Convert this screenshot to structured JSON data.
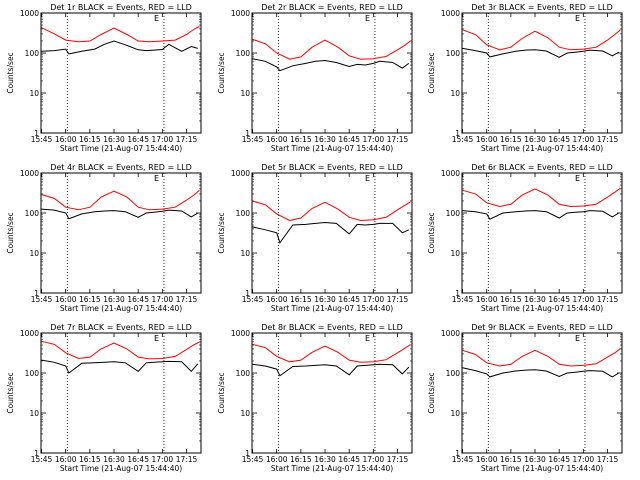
{
  "figure": {
    "ylabel": "Counts/sec",
    "xlabel": "Start Time (21-Aug-07 15:44:40)",
    "x_ticks": [
      "15:45",
      "16:00",
      "16:15",
      "16:30",
      "16:45",
      "17:00",
      "17:15"
    ],
    "y_ticks": [
      "1",
      "10",
      "100",
      "1000"
    ],
    "e_marker": "E",
    "colors": {
      "events": "#000000",
      "lld": "#ff0000",
      "axes": "#000000"
    }
  },
  "chart_data": [
    {
      "type": "line",
      "title": "Det 1r BLACK = Events, RED = LLD",
      "xlabel": "Start Time (21-Aug-07 15:44:40)",
      "ylabel": "Counts/sec",
      "xlim": [
        "15:44:40",
        "17:24"
      ],
      "ylim": [
        1,
        1000
      ],
      "yscale": "log",
      "vlines": [
        "16:01",
        "17:01"
      ],
      "e_marker_at": "17:01",
      "series": [
        {
          "name": "BLACK = Events",
          "color": "#000000",
          "x": [
            "15:45",
            "15:53",
            "16:00",
            "16:02",
            "16:10",
            "16:18",
            "16:24",
            "16:30",
            "16:37",
            "16:45",
            "16:50",
            "16:55",
            "17:00",
            "17:04",
            "17:12",
            "17:18",
            "17:22"
          ],
          "values": [
            110,
            115,
            125,
            95,
            110,
            125,
            165,
            200,
            160,
            120,
            115,
            118,
            122,
            165,
            110,
            145,
            130
          ]
        },
        {
          "name": "RED = LLD",
          "color": "#ff0000",
          "x": [
            "15:45",
            "15:53",
            "16:00",
            "16:08",
            "16:15",
            "16:22",
            "16:30",
            "16:38",
            "16:45",
            "16:52",
            "17:00",
            "17:08",
            "17:15",
            "17:20",
            "17:23"
          ],
          "values": [
            430,
            300,
            210,
            190,
            200,
            290,
            420,
            290,
            200,
            190,
            200,
            210,
            290,
            400,
            460
          ]
        }
      ]
    },
    {
      "type": "line",
      "title": "Det 2r BLACK = Events, RED = LLD",
      "xlabel": "Start Time (21-Aug-07 15:44:40)",
      "ylabel": "Counts/sec",
      "xlim": [
        "15:44:40",
        "17:24"
      ],
      "ylim": [
        1,
        1000
      ],
      "yscale": "log",
      "vlines": [
        "16:01",
        "17:01"
      ],
      "e_marker_at": "17:01",
      "series": [
        {
          "name": "BLACK = Events",
          "color": "#000000",
          "x": [
            "15:45",
            "15:53",
            "16:00",
            "16:02",
            "16:10",
            "16:18",
            "16:24",
            "16:30",
            "16:37",
            "16:45",
            "16:50",
            "16:55",
            "17:00",
            "17:04",
            "17:12",
            "17:18",
            "17:22"
          ],
          "values": [
            72,
            62,
            45,
            36,
            48,
            55,
            62,
            65,
            58,
            46,
            52,
            50,
            55,
            62,
            58,
            42,
            55
          ]
        },
        {
          "name": "RED = LLD",
          "color": "#ff0000",
          "x": [
            "15:45",
            "15:53",
            "16:00",
            "16:08",
            "16:15",
            "16:22",
            "16:30",
            "16:38",
            "16:45",
            "16:52",
            "17:00",
            "17:08",
            "17:15",
            "17:20",
            "17:23"
          ],
          "values": [
            220,
            170,
            100,
            70,
            80,
            140,
            210,
            140,
            85,
            70,
            72,
            82,
            120,
            160,
            200
          ]
        }
      ]
    },
    {
      "type": "line",
      "title": "Det 3r BLACK = Events, RED = LLD",
      "xlabel": "Start Time (21-Aug-07 15:44:40)",
      "ylabel": "Counts/sec",
      "xlim": [
        "15:44:40",
        "17:24"
      ],
      "ylim": [
        1,
        1000
      ],
      "yscale": "log",
      "vlines": [
        "16:01",
        "17:01"
      ],
      "e_marker_at": "17:01",
      "series": [
        {
          "name": "BLACK = Events",
          "color": "#000000",
          "x": [
            "15:45",
            "15:53",
            "16:00",
            "16:02",
            "16:10",
            "16:18",
            "16:24",
            "16:30",
            "16:37",
            "16:45",
            "16:50",
            "16:55",
            "17:00",
            "17:04",
            "17:12",
            "17:18",
            "17:22"
          ],
          "values": [
            130,
            115,
            100,
            80,
            95,
            110,
            118,
            120,
            112,
            78,
            100,
            105,
            110,
            118,
            112,
            85,
            105
          ]
        },
        {
          "name": "RED = LLD",
          "color": "#ff0000",
          "x": [
            "15:45",
            "15:53",
            "16:00",
            "16:08",
            "16:15",
            "16:22",
            "16:30",
            "16:38",
            "16:45",
            "16:52",
            "17:00",
            "17:08",
            "17:15",
            "17:20",
            "17:23"
          ],
          "values": [
            380,
            290,
            160,
            120,
            140,
            230,
            350,
            240,
            140,
            120,
            125,
            140,
            210,
            300,
            380
          ]
        }
      ]
    },
    {
      "type": "line",
      "title": "Det 4r BLACK = Events, RED = LLD",
      "xlabel": "Start Time (21-Aug-07 15:44:40)",
      "ylabel": "Counts/sec",
      "xlim": [
        "15:44:40",
        "17:24"
      ],
      "ylim": [
        1,
        1000
      ],
      "yscale": "log",
      "vlines": [
        "16:01",
        "17:01"
      ],
      "e_marker_at": "17:01",
      "series": [
        {
          "name": "BLACK = Events",
          "color": "#000000",
          "x": [
            "15:45",
            "15:53",
            "16:00",
            "16:02",
            "16:10",
            "16:18",
            "16:24",
            "16:30",
            "16:37",
            "16:45",
            "16:50",
            "16:55",
            "17:00",
            "17:04",
            "17:12",
            "17:18",
            "17:22"
          ],
          "values": [
            125,
            118,
            100,
            72,
            95,
            108,
            112,
            115,
            108,
            78,
            100,
            105,
            110,
            118,
            112,
            80,
            100
          ]
        },
        {
          "name": "RED = LLD",
          "color": "#ff0000",
          "x": [
            "15:45",
            "15:53",
            "16:00",
            "16:08",
            "16:15",
            "16:22",
            "16:30",
            "16:38",
            "16:45",
            "16:52",
            "17:00",
            "17:08",
            "17:15",
            "17:20",
            "17:23"
          ],
          "values": [
            290,
            230,
            140,
            120,
            140,
            250,
            350,
            250,
            140,
            120,
            125,
            140,
            210,
            290,
            370
          ]
        }
      ]
    },
    {
      "type": "line",
      "title": "Det 5r BLACK = Events, RED = LLD",
      "xlabel": "Start Time (21-Aug-07 15:44:40)",
      "ylabel": "Counts/sec",
      "xlim": [
        "15:44:40",
        "17:24"
      ],
      "ylim": [
        1,
        1000
      ],
      "yscale": "log",
      "vlines": [
        "16:01",
        "17:01"
      ],
      "e_marker_at": "17:01",
      "series": [
        {
          "name": "BLACK = Events",
          "color": "#000000",
          "x": [
            "15:45",
            "15:53",
            "16:00",
            "16:02",
            "16:10",
            "16:18",
            "16:24",
            "16:30",
            "16:37",
            "16:45",
            "16:50",
            "16:55",
            "17:00",
            "17:04",
            "17:12",
            "17:18",
            "17:22"
          ],
          "values": [
            45,
            38,
            32,
            18,
            50,
            52,
            55,
            58,
            55,
            30,
            52,
            50,
            52,
            55,
            55,
            32,
            38
          ]
        },
        {
          "name": "RED = LLD",
          "color": "#ff0000",
          "x": [
            "15:45",
            "15:53",
            "16:00",
            "16:08",
            "16:15",
            "16:22",
            "16:30",
            "16:38",
            "16:45",
            "16:52",
            "17:00",
            "17:08",
            "17:15",
            "17:20",
            "17:23"
          ],
          "values": [
            200,
            160,
            95,
            65,
            75,
            130,
            185,
            125,
            78,
            65,
            68,
            78,
            120,
            160,
            190
          ]
        }
      ]
    },
    {
      "type": "line",
      "title": "Det 6r BLACK = Events, RED = LLD",
      "xlabel": "Start Time (21-Aug-07 15:44:40)",
      "ylabel": "Counts/sec",
      "xlim": [
        "15:44:40",
        "17:24"
      ],
      "ylim": [
        1,
        1000
      ],
      "yscale": "log",
      "vlines": [
        "16:01",
        "17:01"
      ],
      "e_marker_at": "17:01",
      "series": [
        {
          "name": "BLACK = Events",
          "color": "#000000",
          "x": [
            "15:45",
            "15:53",
            "16:00",
            "16:02",
            "16:10",
            "16:18",
            "16:24",
            "16:30",
            "16:37",
            "16:45",
            "16:50",
            "16:55",
            "17:00",
            "17:04",
            "17:12",
            "17:18",
            "17:22"
          ],
          "values": [
            115,
            108,
            95,
            70,
            100,
            108,
            112,
            115,
            108,
            75,
            100,
            105,
            108,
            115,
            110,
            80,
            100
          ]
        },
        {
          "name": "RED = LLD",
          "color": "#ff0000",
          "x": [
            "15:45",
            "15:53",
            "16:00",
            "16:08",
            "16:15",
            "16:22",
            "16:30",
            "16:38",
            "16:45",
            "16:52",
            "17:00",
            "17:08",
            "17:15",
            "17:20",
            "17:23"
          ],
          "values": [
            370,
            300,
            180,
            145,
            165,
            280,
            400,
            280,
            165,
            145,
            150,
            165,
            250,
            340,
            420
          ]
        }
      ]
    },
    {
      "type": "line",
      "title": "Det 7r BLACK = Events, RED = LLD",
      "xlabel": "Start Time (21-Aug-07 15:44:40)",
      "ylabel": "Counts/sec",
      "xlim": [
        "15:44:40",
        "17:24"
      ],
      "ylim": [
        1,
        1000
      ],
      "yscale": "log",
      "vlines": [
        "16:01",
        "17:01"
      ],
      "e_marker_at": "17:01",
      "series": [
        {
          "name": "BLACK = Events",
          "color": "#000000",
          "x": [
            "15:45",
            "15:53",
            "16:00",
            "16:02",
            "16:10",
            "16:18",
            "16:24",
            "16:30",
            "16:37",
            "16:45",
            "16:50",
            "16:55",
            "17:00",
            "17:04",
            "17:12",
            "17:18",
            "17:22"
          ],
          "values": [
            210,
            185,
            150,
            100,
            175,
            180,
            185,
            190,
            180,
            110,
            180,
            185,
            190,
            195,
            190,
            110,
            170
          ]
        },
        {
          "name": "RED = LLD",
          "color": "#ff0000",
          "x": [
            "15:45",
            "15:53",
            "16:00",
            "16:08",
            "16:15",
            "16:22",
            "16:30",
            "16:38",
            "16:45",
            "16:52",
            "17:00",
            "17:08",
            "17:15",
            "17:20",
            "17:23"
          ],
          "values": [
            620,
            520,
            320,
            230,
            250,
            400,
            560,
            400,
            250,
            225,
            230,
            260,
            390,
            520,
            600
          ]
        }
      ]
    },
    {
      "type": "line",
      "title": "Det 8r BLACK = Events, RED = LLD",
      "xlabel": "Start Time (21-Aug-07 15:44:40)",
      "ylabel": "Counts/sec",
      "xlim": [
        "15:44:40",
        "17:24"
      ],
      "ylim": [
        1,
        1000
      ],
      "yscale": "log",
      "vlines": [
        "16:01",
        "17:01"
      ],
      "e_marker_at": "17:01",
      "series": [
        {
          "name": "BLACK = Events",
          "color": "#000000",
          "x": [
            "15:45",
            "15:53",
            "16:00",
            "16:02",
            "16:10",
            "16:18",
            "16:24",
            "16:30",
            "16:37",
            "16:45",
            "16:50",
            "16:55",
            "17:00",
            "17:04",
            "17:12",
            "17:18",
            "17:22"
          ],
          "values": [
            165,
            150,
            125,
            85,
            145,
            150,
            155,
            160,
            150,
            90,
            150,
            155,
            160,
            165,
            160,
            95,
            140
          ]
        },
        {
          "name": "RED = LLD",
          "color": "#ff0000",
          "x": [
            "15:45",
            "15:53",
            "16:00",
            "16:08",
            "16:15",
            "16:22",
            "16:30",
            "16:38",
            "16:45",
            "16:52",
            "17:00",
            "17:08",
            "17:15",
            "17:20",
            "17:23"
          ],
          "values": [
            520,
            430,
            260,
            190,
            210,
            330,
            470,
            330,
            210,
            185,
            190,
            215,
            320,
            430,
            510
          ]
        }
      ]
    },
    {
      "type": "line",
      "title": "Det 9r BLACK = Events, RED = LLD",
      "xlabel": "Start Time (21-Aug-07 15:44:40)",
      "ylabel": "Counts/sec",
      "xlim": [
        "15:44:40",
        "17:24"
      ],
      "ylim": [
        1,
        1000
      ],
      "yscale": "log",
      "vlines": [
        "16:01",
        "17:01"
      ],
      "e_marker_at": "17:01",
      "series": [
        {
          "name": "BLACK = Events",
          "color": "#000000",
          "x": [
            "15:45",
            "15:53",
            "16:00",
            "16:02",
            "16:10",
            "16:18",
            "16:24",
            "16:30",
            "16:37",
            "16:45",
            "16:50",
            "16:55",
            "17:00",
            "17:04",
            "17:12",
            "17:18",
            "17:22"
          ],
          "values": [
            135,
            115,
            95,
            80,
            100,
            112,
            118,
            120,
            112,
            82,
            100,
            105,
            110,
            115,
            110,
            80,
            100
          ]
        },
        {
          "name": "RED = LLD",
          "color": "#ff0000",
          "x": [
            "15:45",
            "15:53",
            "16:00",
            "16:08",
            "16:15",
            "16:22",
            "16:30",
            "16:38",
            "16:45",
            "16:52",
            "17:00",
            "17:08",
            "17:15",
            "17:20",
            "17:23"
          ],
          "values": [
            370,
            290,
            180,
            150,
            165,
            260,
            370,
            260,
            165,
            150,
            155,
            170,
            250,
            330,
            410
          ]
        }
      ]
    }
  ]
}
